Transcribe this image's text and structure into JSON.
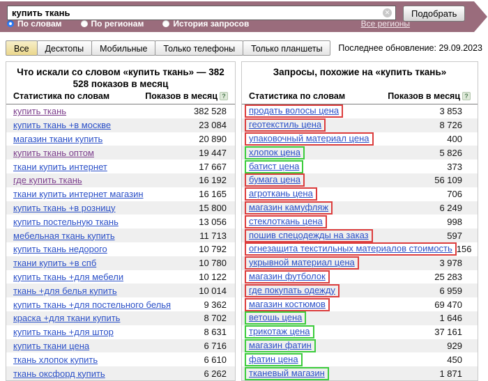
{
  "search": {
    "query": "купить ткань",
    "clear_icon": "✕",
    "submit_label": "Подобрать",
    "modes": [
      {
        "label": "По словам",
        "selected": true
      },
      {
        "label": "По регионам",
        "selected": false
      },
      {
        "label": "История запросов",
        "selected": false
      }
    ],
    "regions_link": "Все регионы"
  },
  "device_tabs": {
    "tabs": [
      {
        "label": "Все",
        "active": true
      },
      {
        "label": "Десктопы",
        "active": false
      },
      {
        "label": "Мобильные",
        "active": false
      },
      {
        "label": "Только телефоны",
        "active": false
      },
      {
        "label": "Только планшеты",
        "active": false
      }
    ],
    "last_update": "Последнее обновление: 29.09.2023"
  },
  "left_panel": {
    "title": "Что искали со словом «купить ткань» — 382 528 показов в месяц",
    "col_keyword": "Статистика по словам",
    "col_value": "Показов в месяц",
    "help_icon": "?",
    "rows": [
      {
        "keyword": "купить ткань",
        "value": "382 528",
        "visited": true
      },
      {
        "keyword": "купить ткань +в москве",
        "value": "23 084",
        "visited": false
      },
      {
        "keyword": "магазин ткани купить",
        "value": "20 890",
        "visited": false
      },
      {
        "keyword": "купить ткань оптом",
        "value": "19 447",
        "visited": true
      },
      {
        "keyword": "ткани купить интернет",
        "value": "17 667",
        "visited": false
      },
      {
        "keyword": "где купить ткань",
        "value": "16 192",
        "visited": true
      },
      {
        "keyword": "ткани купить интернет магазин",
        "value": "16 165",
        "visited": false
      },
      {
        "keyword": "купить ткань +в розницу",
        "value": "15 800",
        "visited": false
      },
      {
        "keyword": "купить постельную ткань",
        "value": "13 056",
        "visited": false
      },
      {
        "keyword": "мебельная ткань купить",
        "value": "11 713",
        "visited": false
      },
      {
        "keyword": "купить ткань недорого",
        "value": "10 792",
        "visited": false
      },
      {
        "keyword": "ткани купить +в спб",
        "value": "10 780",
        "visited": false
      },
      {
        "keyword": "купить ткань +для мебели",
        "value": "10 122",
        "visited": false
      },
      {
        "keyword": "ткань +для белья купить",
        "value": "10 014",
        "visited": false
      },
      {
        "keyword": "купить ткань +для постельного белья",
        "value": "9 362",
        "visited": false
      },
      {
        "keyword": "краска +для ткани купить",
        "value": "8 702",
        "visited": false
      },
      {
        "keyword": "купить ткань +для штор",
        "value": "8 631",
        "visited": false
      },
      {
        "keyword": "купить ткани цена",
        "value": "6 716",
        "visited": false
      },
      {
        "keyword": "ткань хлопок купить",
        "value": "6 610",
        "visited": false
      },
      {
        "keyword": "ткань оксфорд купить",
        "value": "6 262",
        "visited": false
      }
    ]
  },
  "right_panel": {
    "title": "Запросы, похожие на «купить ткань»",
    "col_keyword": "Статистика по словам",
    "col_value": "Показов в месяц",
    "help_icon": "?",
    "rows": [
      {
        "keyword": "продать волосы цена",
        "value": "3 853",
        "box": "red"
      },
      {
        "keyword": "геотекстиль цена",
        "value": "8 726",
        "box": "red"
      },
      {
        "keyword": "упаковочный материал цена",
        "value": "400",
        "box": "red"
      },
      {
        "keyword": "хлопок цена",
        "value": "5 826",
        "box": "green"
      },
      {
        "keyword": "батист цена",
        "value": "373",
        "box": "green"
      },
      {
        "keyword": "бумага цена",
        "value": "56 109",
        "box": "red"
      },
      {
        "keyword": "агроткань цена",
        "value": "706",
        "box": "red"
      },
      {
        "keyword": "магазин камуфляж",
        "value": "6 249",
        "box": "red"
      },
      {
        "keyword": "стеклоткань цена",
        "value": "998",
        "box": "red"
      },
      {
        "keyword": "пошив спецодежды на заказ",
        "value": "597",
        "box": "red"
      },
      {
        "keyword": "огнезащита текстильных материалов стоимость",
        "value": "156",
        "box": "red"
      },
      {
        "keyword": "укрывной материал цена",
        "value": "3 978",
        "box": "red"
      },
      {
        "keyword": "магазин футболок",
        "value": "25 283",
        "box": "red"
      },
      {
        "keyword": "где покупать одежду",
        "value": "6 959",
        "box": "red"
      },
      {
        "keyword": "магазин костюмов",
        "value": "69 470",
        "box": "red"
      },
      {
        "keyword": "ветошь цена",
        "value": "1 646",
        "box": "green"
      },
      {
        "keyword": "трикотаж цена",
        "value": "37 161",
        "box": "green"
      },
      {
        "keyword": "магазин фатин",
        "value": "929",
        "box": "green"
      },
      {
        "keyword": "фатин цена",
        "value": "450",
        "box": "green"
      },
      {
        "keyword": "тканевый магазин",
        "value": "1 871",
        "box": "green"
      }
    ]
  },
  "colors": {
    "banner": "#9a6c7c",
    "active_tab": "#ecd98f",
    "link": "#2b50c8",
    "visited_link": "#7d3f8d",
    "red_box": "#dc3c3c",
    "green_box": "#3bcc3b",
    "alt_row": "#efefef"
  }
}
